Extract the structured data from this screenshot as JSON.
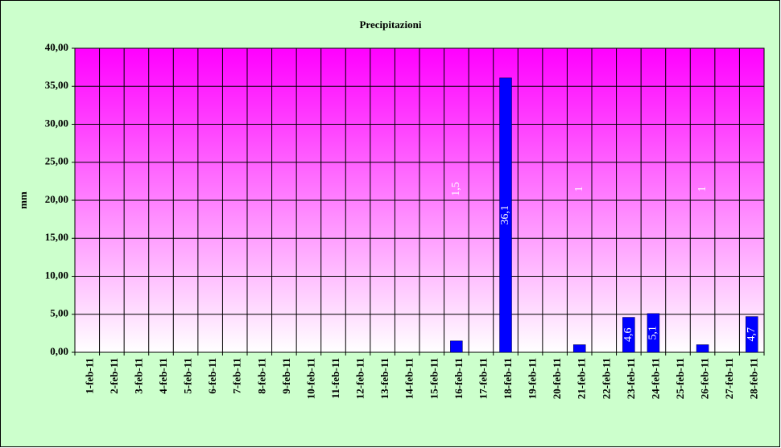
{
  "chart_data": {
    "type": "bar",
    "title": "Precipitazioni",
    "y_label": "mm",
    "categories": [
      "1-feb-11",
      "2-feb-11",
      "3-feb-11",
      "4-feb-11",
      "5-feb-11",
      "6-feb-11",
      "7-feb-11",
      "8-feb-11",
      "9-feb-11",
      "10-feb-11",
      "11-feb-11",
      "12-feb-11",
      "13-feb-11",
      "14-feb-11",
      "15-feb-11",
      "16-feb-11",
      "17-feb-11",
      "18-feb-11",
      "19-feb-11",
      "20-feb-11",
      "21-feb-11",
      "22-feb-11",
      "23-feb-11",
      "24-feb-11",
      "25-feb-11",
      "26-feb-11",
      "27-feb-11",
      "28-feb-11"
    ],
    "values": [
      0,
      0,
      0,
      0,
      0,
      0,
      0,
      0,
      0,
      0,
      0,
      0,
      0,
      0,
      0,
      1.5,
      0,
      36.1,
      0,
      0,
      1,
      0,
      4.6,
      5.1,
      0,
      1,
      0,
      4.7
    ],
    "value_labels": [
      null,
      null,
      null,
      null,
      null,
      null,
      null,
      null,
      null,
      null,
      null,
      null,
      null,
      null,
      null,
      "1,5",
      null,
      "36,1",
      null,
      null,
      "1",
      null,
      "4,6",
      "5,1",
      null,
      "1",
      null,
      "4,7"
    ],
    "color": "#0000ff",
    "ylim": [
      0,
      40
    ],
    "yticks": [
      {
        "value": 0,
        "label": "0,00"
      },
      {
        "value": 5,
        "label": "5,00"
      },
      {
        "value": 10,
        "label": "10,00"
      },
      {
        "value": 15,
        "label": "15,00"
      },
      {
        "value": 20,
        "label": "20,00"
      },
      {
        "value": 25,
        "label": "25,00"
      },
      {
        "value": 30,
        "label": "30,00"
      },
      {
        "value": 35,
        "label": "35,00"
      },
      {
        "value": 40,
        "label": "40,00"
      }
    ],
    "grid": true
  }
}
